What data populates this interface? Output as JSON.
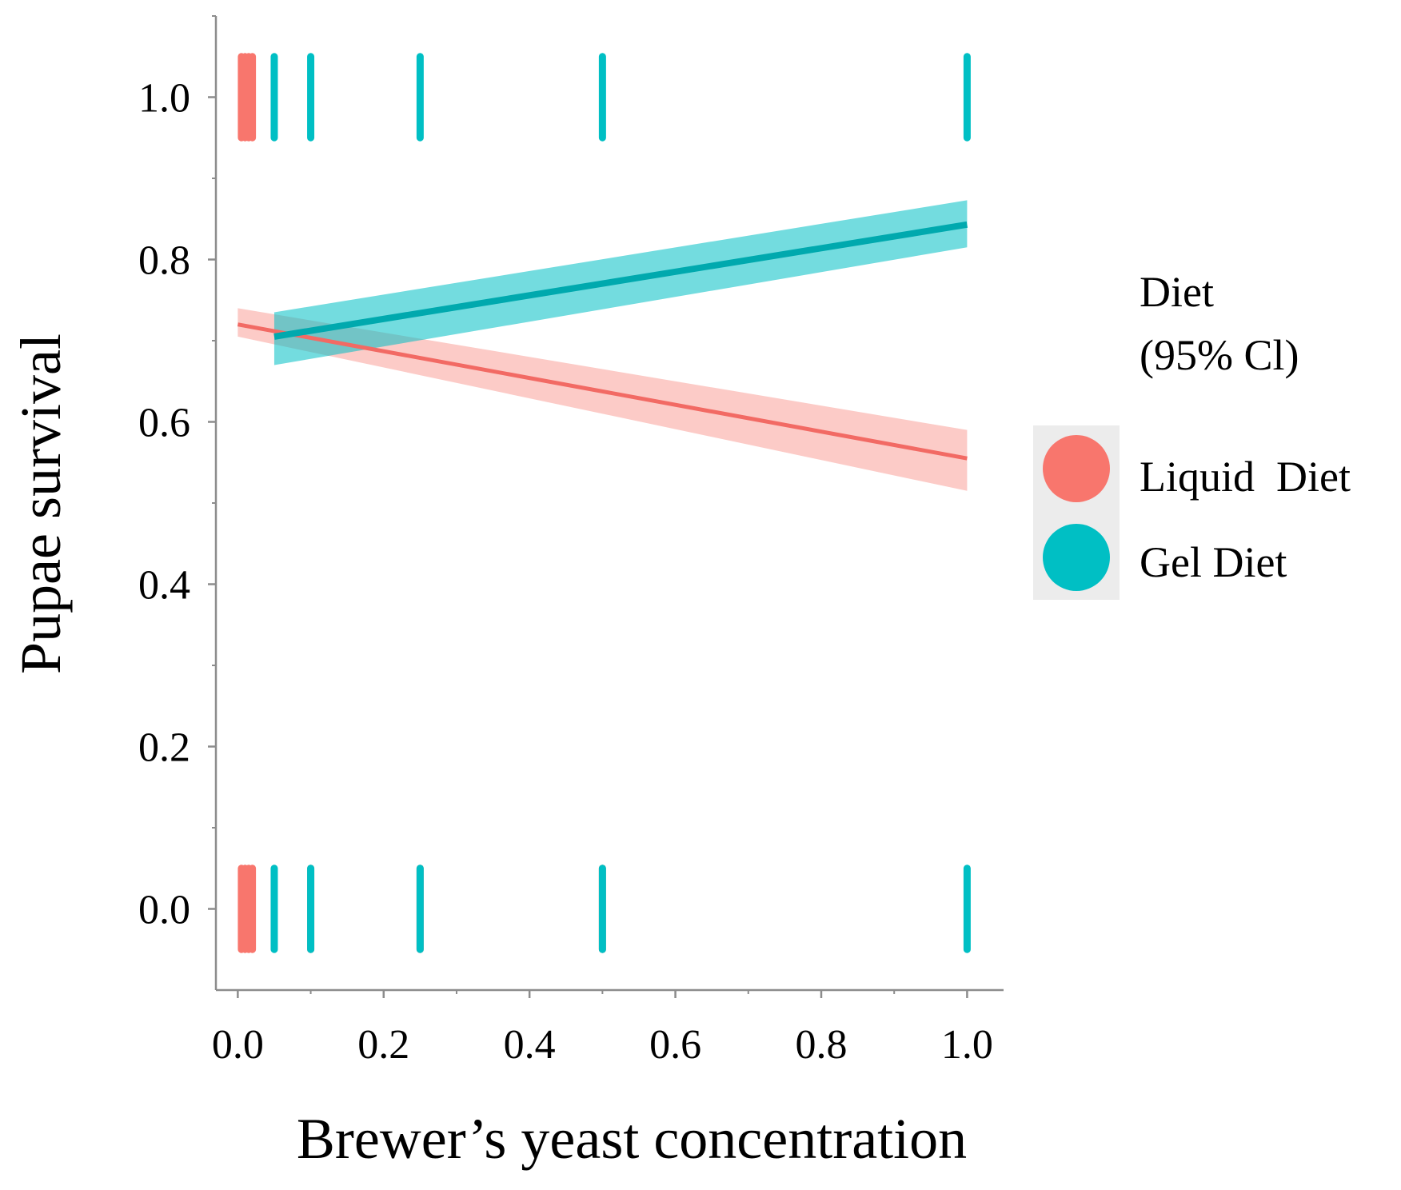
{
  "chart_data": {
    "type": "line",
    "title": "",
    "xlabel": "Brewer’s yeast concentration",
    "ylabel": "Pupae survival",
    "xlim": [
      -0.03,
      1.05
    ],
    "ylim": [
      -0.1,
      1.1
    ],
    "x_ticks": [
      0.0,
      0.2,
      0.4,
      0.6,
      0.8,
      1.0
    ],
    "x_tick_labels": [
      "0.0",
      "0.2",
      "0.4",
      "0.6",
      "0.8",
      "1.0"
    ],
    "y_ticks": [
      0.0,
      0.2,
      0.4,
      0.6,
      0.8,
      1.0
    ],
    "y_tick_labels": [
      "0.0",
      "0.2",
      "0.4",
      "0.6",
      "0.8",
      "1.0"
    ],
    "grid": false,
    "legend": {
      "title": "Diet",
      "subtitle": "(95% Cl)",
      "position": "right"
    },
    "series": [
      {
        "name": "Liquid  Diet",
        "color": "#F8766D",
        "fit_x": [
          0.0,
          1.0
        ],
        "fit_y": [
          0.72,
          0.555
        ],
        "ci_lower": [
          0.705,
          0.515
        ],
        "ci_upper": [
          0.74,
          0.59
        ],
        "observations_y1_x": [
          0.005,
          0.01,
          0.015,
          0.02
        ],
        "observations_y0_x": [
          0.005,
          0.01,
          0.015,
          0.02,
          0.1,
          0.25,
          0.5
        ]
      },
      {
        "name": "Gel Diet",
        "color": "#00BFC4",
        "fit_x": [
          0.05,
          1.0
        ],
        "fit_y": [
          0.705,
          0.843
        ],
        "ci_lower": [
          0.67,
          0.815
        ],
        "ci_upper": [
          0.735,
          0.873
        ],
        "observations_y1_x": [
          0.05,
          0.1,
          0.25,
          0.5,
          1.0
        ],
        "observations_y0_x": [
          0.05,
          0.1,
          0.25,
          0.5,
          1.0
        ]
      }
    ]
  }
}
